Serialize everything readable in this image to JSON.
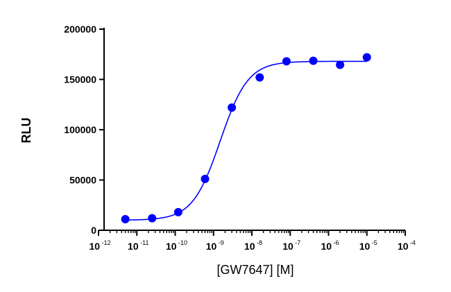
{
  "chart_data": {
    "type": "scatter",
    "xlabel": "[GW7647] [M]",
    "ylabel": "RLU",
    "x_scale": "log",
    "xlim": [
      1e-12,
      0.0001
    ],
    "ylim": [
      0,
      200000
    ],
    "grid": false,
    "legend": "none",
    "x_ticks": [
      {
        "base": "10",
        "exp": "-12"
      },
      {
        "base": "10",
        "exp": "-11"
      },
      {
        "base": "10",
        "exp": "-10"
      },
      {
        "base": "10",
        "exp": "-9"
      },
      {
        "base": "10",
        "exp": "-8"
      },
      {
        "base": "10",
        "exp": "-7"
      },
      {
        "base": "10",
        "exp": "-6"
      },
      {
        "base": "10",
        "exp": "-5"
      },
      {
        "base": "10",
        "exp": "-4"
      }
    ],
    "y_ticks": [
      "0",
      "50000",
      "100000",
      "150000",
      "200000"
    ],
    "y_tick_values": [
      0,
      50000,
      100000,
      150000,
      200000
    ],
    "series": [
      {
        "x": [
          5e-12,
          2.5e-11,
          1.2e-10,
          6e-10,
          3e-09,
          1.6e-08,
          8e-08,
          4e-07,
          2e-06,
          1e-05
        ],
        "values": [
          11000,
          12000,
          18000,
          51000,
          122000,
          152000,
          168000,
          168500,
          164500,
          172000
        ],
        "color": "#0000ff"
      }
    ],
    "fit_curve": {
      "model": "sigmoidal dose-response",
      "bottom": 10000,
      "top": 168000,
      "ec50": 1.5e-09,
      "hill_slope": 1.2,
      "x_range": [
        5e-12,
        1e-05
      ],
      "color": "#0000ff"
    }
  }
}
